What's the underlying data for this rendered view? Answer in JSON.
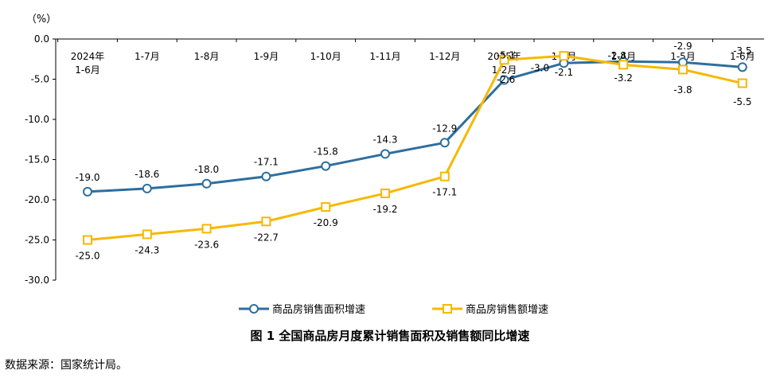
{
  "chart_data": {
    "type": "line",
    "unit_label": "（%）",
    "categories": [
      "2024年\n1-6月",
      "1-7月",
      "1-8月",
      "1-9月",
      "1-10月",
      "1-11月",
      "1-12月",
      "2025年\n1-2月",
      "1-3月",
      "1-4月",
      "1-5月",
      "1-6月"
    ],
    "ylim": [
      -30,
      0
    ],
    "yticks": [
      0,
      -5,
      -10,
      -15,
      -20,
      -25,
      -30
    ],
    "ytick_labels": [
      "0.0",
      "-5.0",
      "-10.0",
      "-15.0",
      "-20.0",
      "-25.0",
      "-30.0"
    ],
    "grid": false,
    "legend_position": "bottom",
    "series": [
      {
        "name": "商品房销售面积增速",
        "color": "#2e6e9e",
        "marker": "circle",
        "values": [
          -19.0,
          -18.6,
          -18.0,
          -17.1,
          -15.8,
          -14.3,
          -12.9,
          -5.1,
          -3.0,
          -2.8,
          -2.9,
          -3.5
        ],
        "labels": [
          "-19.0",
          "-18.6",
          "-18.0",
          "-17.1",
          "-15.8",
          "-14.3",
          "-12.9",
          "-5.1",
          "-3.0",
          "-2.8",
          "-2.9",
          "-3.5"
        ]
      },
      {
        "name": "商品房销售额增速",
        "color": "#f6b800",
        "marker": "square",
        "values": [
          -25.0,
          -24.3,
          -23.6,
          -22.7,
          -20.9,
          -19.2,
          -17.1,
          -2.6,
          -2.1,
          -3.2,
          -3.8,
          -5.5
        ],
        "labels": [
          "-25.0",
          "-24.3",
          "-23.6",
          "-22.7",
          "-20.9",
          "-19.2",
          "-17.1",
          "-2.6",
          "-2.1",
          "-3.2",
          "-3.8",
          "-5.5"
        ]
      }
    ]
  },
  "caption": "图 1  全国商品房月度累计销售面积及销售额同比增速",
  "source": "数据来源：国家统计局。"
}
